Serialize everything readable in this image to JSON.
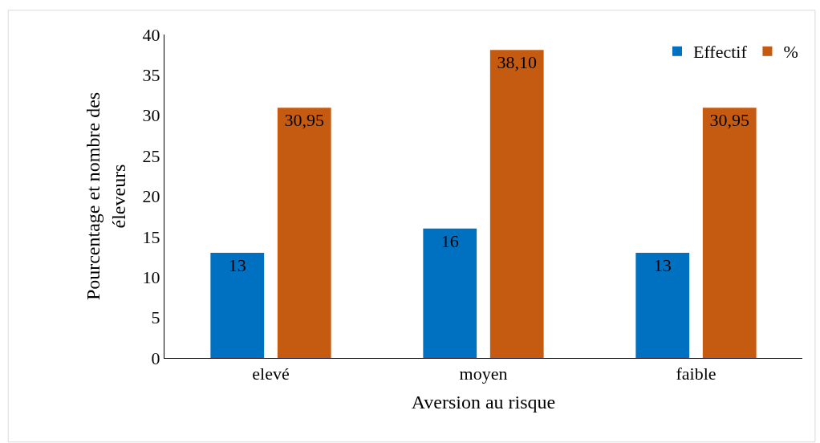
{
  "chart_data": {
    "type": "bar",
    "xlabel": "Aversion au risque",
    "ylabel": "Pourcentage et nombre des éleveurs",
    "categories": [
      "elevé",
      "moyen",
      "faible"
    ],
    "series": [
      {
        "name": "Effectif",
        "color": "#0070c0",
        "values": [
          13,
          16,
          13
        ],
        "value_labels": [
          "13",
          "16",
          "13"
        ]
      },
      {
        "name": "%",
        "color": "#c55a11",
        "values": [
          30.95,
          38.1,
          30.95
        ],
        "value_labels": [
          "30,95",
          "38,10",
          "30,95"
        ]
      }
    ],
    "ylim": [
      0,
      40
    ],
    "yticks": [
      0,
      5,
      10,
      15,
      20,
      25,
      30,
      35,
      40
    ],
    "legend": "top right"
  }
}
